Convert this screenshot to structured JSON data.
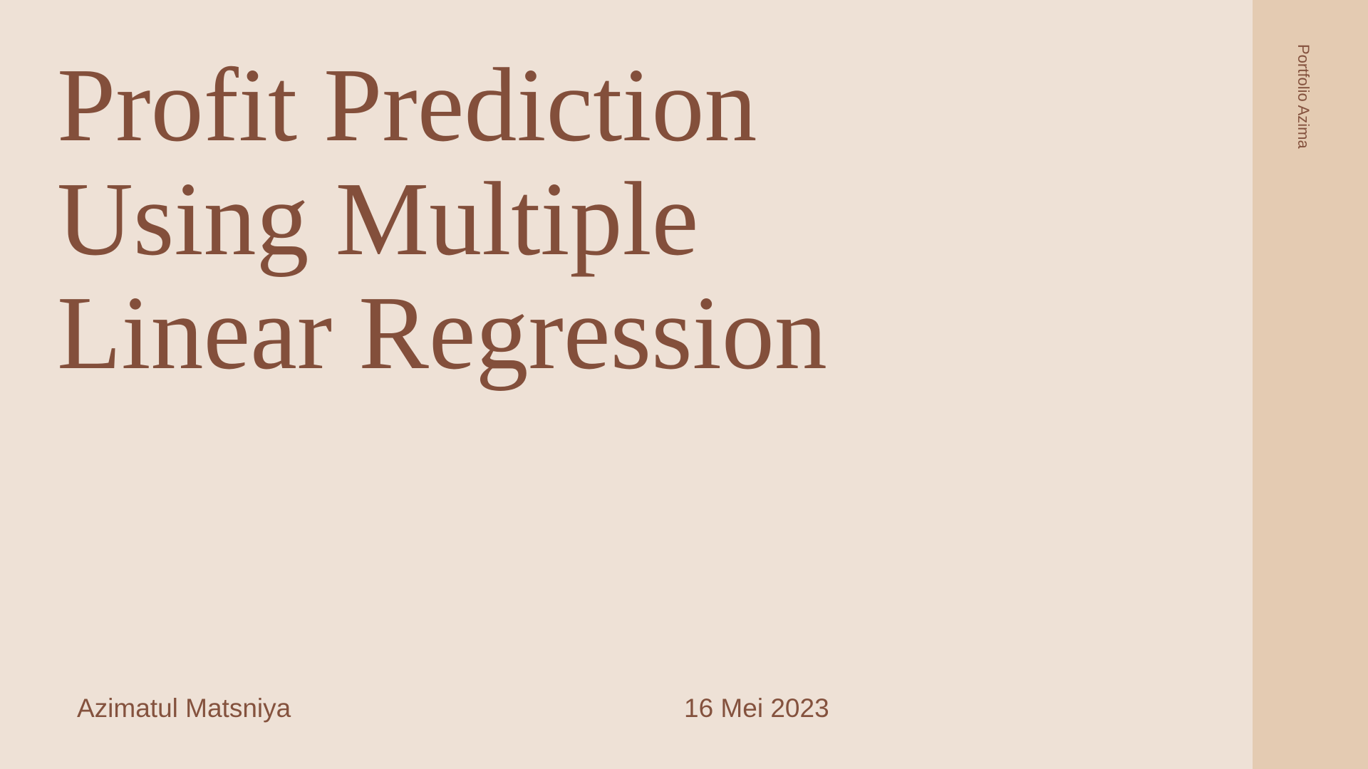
{
  "slide": {
    "title_lines": [
      "Profit Prediction",
      "Using Multiple",
      "Linear Regression"
    ],
    "author": "Azimatul Matsniya",
    "date": "16 Mei 2023",
    "sidebar_label": "Portfolio Azima"
  },
  "colors": {
    "background": "#EEE1D6",
    "sidebar": "#E4CBB2",
    "text": "#834F3B"
  }
}
